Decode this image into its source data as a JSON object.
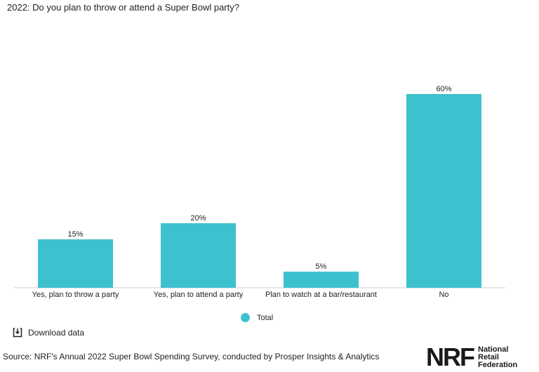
{
  "header": {
    "title": "2022: Do you plan to throw or attend a Super Bowl party?"
  },
  "chart_data": {
    "type": "bar",
    "title": "2022: Do you plan to throw or attend a Super Bowl party?",
    "categories": [
      "Yes, plan to throw a party",
      "Yes, plan to attend a party",
      "Plan to watch at a bar/restaurant",
      "No"
    ],
    "series": [
      {
        "name": "Total",
        "values": [
          15,
          20,
          5,
          60
        ],
        "labels": [
          "15%",
          "20%",
          "5%",
          "60%"
        ],
        "color": "#3ec1cf"
      }
    ],
    "ylim": [
      0,
      70
    ],
    "grid": false,
    "legend": "bottom-center"
  },
  "legend": {
    "label": "Total",
    "color": "#3ec1cf"
  },
  "download": {
    "label": "Download data",
    "icon": "download-icon"
  },
  "footer": {
    "source": "Source: NRF's Annual 2022 Super Bowl Spending Survey, conducted by Prosper Insights & Analytics",
    "logo_mark": "NRF",
    "logo_line1": "National",
    "logo_line2": "Retail",
    "logo_line3": "Federation"
  }
}
